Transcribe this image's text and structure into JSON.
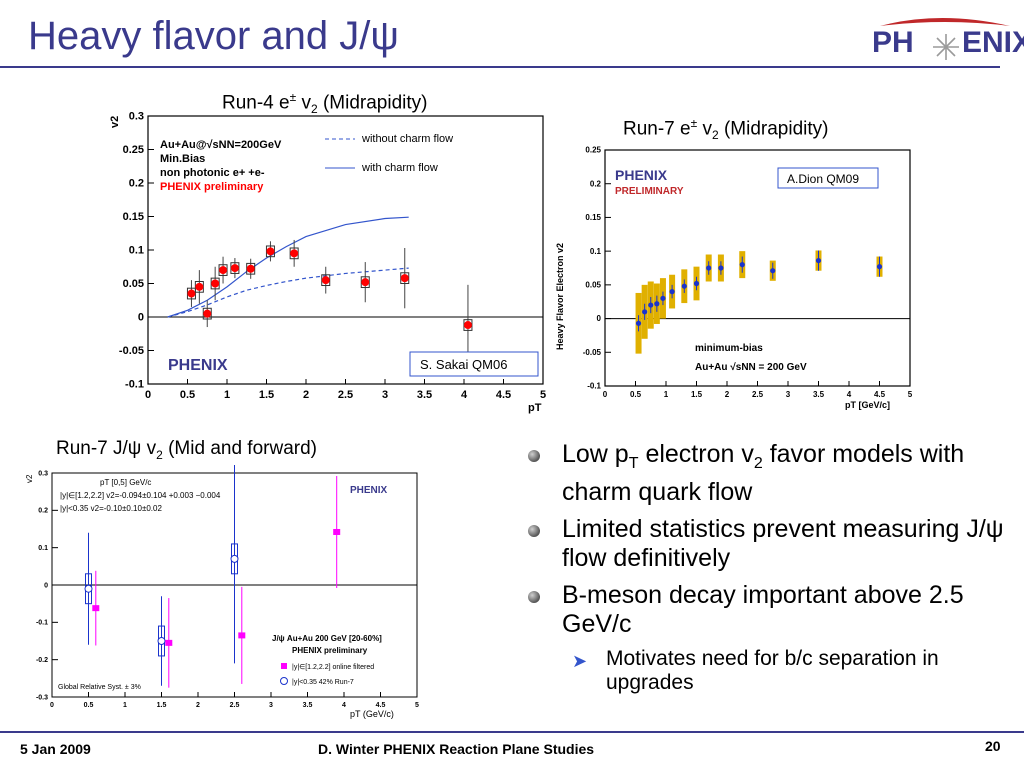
{
  "slide": {
    "title": "Heavy flavor and J/ψ",
    "logo": {
      "text_left": "PH",
      "text_right": "ENIX",
      "icon": "phoenix-bird-icon"
    },
    "accent_color": "#3a3a8c"
  },
  "footer": {
    "date": "5 Jan 2009",
    "center": "D. Winter PHENIX Reaction Plane Studies",
    "page_number": "20"
  },
  "panels": {
    "top_left": {
      "title_main": "Run-4 e",
      "title_sup": "±",
      "title_v": " v",
      "title_sub": "2",
      "title_tail": " (Midrapidity)"
    },
    "top_right": {
      "title_main": "Run-7 e",
      "title_sup": "±",
      "title_v": " v",
      "title_sub": "2",
      "title_tail": " (Midrapidity)"
    },
    "bottom_left": {
      "title_main": "Run-7 J/ψ v",
      "title_sub": "2",
      "title_tail": " (Mid and forward)"
    }
  },
  "chart_data": [
    {
      "type": "scatter",
      "xlabel": "pT",
      "ylabel": "v2",
      "xlim": [
        0,
        5
      ],
      "ylim": [
        -0.1,
        0.3
      ],
      "x_ticks": [
        "0",
        "0.5",
        "1",
        "1.5",
        "2",
        "2.5",
        "3",
        "3.5",
        "4",
        "4.5",
        "5"
      ],
      "y_ticks": [
        "-0.1",
        "-0.05",
        "0",
        "0.05",
        "0.1",
        "0.15",
        "0.2",
        "0.25",
        "0.3"
      ],
      "text_lines": [
        "Au+Au@√sNN=200GeV",
        "Min.Bias",
        "non photonic e+ +e-"
      ],
      "preliminary_label": "PHENIX preliminary",
      "legend": [
        "without charm flow",
        "with charm flow"
      ],
      "logo_label": "PHENIX",
      "annotation": "S. Sakai QM06",
      "series": [
        {
          "name": "PHENIX preliminary",
          "color": "#ff0000",
          "points": [
            [
              0.55,
              0.035
            ],
            [
              0.65,
              0.045
            ],
            [
              0.75,
              0.005
            ],
            [
              0.85,
              0.05
            ],
            [
              0.95,
              0.07
            ],
            [
              1.1,
              0.073
            ],
            [
              1.3,
              0.072
            ],
            [
              1.55,
              0.098
            ],
            [
              1.85,
              0.095
            ],
            [
              2.25,
              0.055
            ],
            [
              2.75,
              0.052
            ],
            [
              3.25,
              0.058
            ],
            [
              4.05,
              -0.012
            ]
          ],
          "err": [
            0.02,
            0.025,
            0.02,
            0.025,
            0.02,
            0.015,
            0.015,
            0.015,
            0.02,
            0.02,
            0.03,
            0.045,
            0.06
          ]
        },
        {
          "name": "without charm flow",
          "style": "dashed",
          "color": "#3355cc",
          "points": [
            [
              0.25,
              0
            ],
            [
              0.5,
              0.008
            ],
            [
              0.75,
              0.018
            ],
            [
              1.0,
              0.03
            ],
            [
              1.25,
              0.04
            ],
            [
              1.5,
              0.047
            ],
            [
              1.75,
              0.053
            ],
            [
              2.0,
              0.058
            ],
            [
              2.5,
              0.065
            ],
            [
              3.0,
              0.07
            ],
            [
              3.3,
              0.073
            ]
          ]
        },
        {
          "name": "with charm flow",
          "style": "solid",
          "color": "#3355cc",
          "points": [
            [
              0.25,
              0
            ],
            [
              0.5,
              0.01
            ],
            [
              0.75,
              0.025
            ],
            [
              1.0,
              0.045
            ],
            [
              1.25,
              0.068
            ],
            [
              1.5,
              0.088
            ],
            [
              1.75,
              0.105
            ],
            [
              2.0,
              0.12
            ],
            [
              2.5,
              0.138
            ],
            [
              3.0,
              0.147
            ],
            [
              3.3,
              0.149
            ]
          ]
        }
      ]
    },
    {
      "type": "scatter",
      "xlabel": "pT [GeV/c]",
      "ylabel": "Heavy Flavor Electron v2",
      "xlim": [
        0,
        5
      ],
      "ylim": [
        -0.1,
        0.25
      ],
      "x_ticks": [
        "0",
        "0.5",
        "1",
        "1.5",
        "2",
        "2.5",
        "3",
        "3.5",
        "4",
        "4.5",
        "5"
      ],
      "y_ticks": [
        "-0.1",
        "-0.05",
        "0",
        "0.05",
        "0.1",
        "0.15",
        "0.2",
        "0.25"
      ],
      "logo_label": "PHENIX",
      "preliminary_label": "PRELIMINARY",
      "annotation": "A.Dion QM09",
      "text_lines": [
        "minimum-bias",
        "Au+Au √sNN = 200 GeV"
      ],
      "series": [
        {
          "name": "minimum-bias",
          "color": "#1a33cc",
          "sys_color": "#e0b000",
          "points": [
            [
              0.55,
              -0.007
            ],
            [
              0.65,
              0.01
            ],
            [
              0.75,
              0.02
            ],
            [
              0.85,
              0.022
            ],
            [
              0.95,
              0.03
            ],
            [
              1.1,
              0.04
            ],
            [
              1.3,
              0.048
            ],
            [
              1.5,
              0.052
            ],
            [
              1.7,
              0.075
            ],
            [
              1.9,
              0.075
            ],
            [
              2.25,
              0.08
            ],
            [
              2.75,
              0.071
            ],
            [
              3.5,
              0.086
            ],
            [
              4.5,
              0.077
            ]
          ],
          "err": [
            0.012,
            0.012,
            0.012,
            0.012,
            0.01,
            0.01,
            0.01,
            0.01,
            0.01,
            0.01,
            0.012,
            0.012,
            0.015,
            0.015
          ],
          "sys": [
            0.045,
            0.04,
            0.035,
            0.03,
            0.03,
            0.025,
            0.025,
            0.025,
            0.02,
            0.02,
            0.02,
            0.015,
            0.015,
            0.015
          ]
        }
      ]
    },
    {
      "type": "scatter",
      "xlabel": "pT (GeV/c)",
      "ylabel": "v2",
      "xlim": [
        0,
        5
      ],
      "ylim": [
        -0.3,
        0.3
      ],
      "x_ticks": [
        "0",
        "0.5",
        "1",
        "1.5",
        "2",
        "2.5",
        "3",
        "3.5",
        "4",
        "4.5",
        "5"
      ],
      "y_ticks": [
        "-0.3",
        "-0.2",
        "-0.1",
        "0",
        "0.1",
        "0.2",
        "0.3"
      ],
      "fit_lines": [
        "pT [0,5] GeV/c",
        "|y|∈[1.2,2.2] v2=-0.094±0.104 +0.003 −0.004",
        "|y|<0.35 v2=-0.10±0.10±0.02"
      ],
      "logo_label": "PHENIX",
      "legend_title": "J/ψ Au+Au 200 GeV [20-60%]",
      "legend_sub": "PHENIX preliminary",
      "legend": [
        "|y|∈[1.2,2.2] online filtered",
        "|y|<0.35 42% Run-7"
      ],
      "syst_note": "Global Relative Syst. ± 3%",
      "series": [
        {
          "name": "|y|∈[1.2,2.2] online filtered",
          "color": "#ff00ff",
          "points": [
            [
              0.6,
              -0.062
            ],
            [
              1.6,
              -0.155
            ],
            [
              2.6,
              -0.135
            ],
            [
              3.9,
              0.142
            ]
          ],
          "err": [
            0.1,
            0.12,
            0.13,
            0.15
          ]
        },
        {
          "name": "|y|<0.35 42% Run-7",
          "color": "#1a33cc",
          "points": [
            [
              0.5,
              -0.01
            ],
            [
              1.5,
              -0.15
            ],
            [
              2.5,
              0.07
            ]
          ],
          "err": [
            0.15,
            0.12,
            0.28
          ]
        }
      ]
    }
  ],
  "bullets": [
    {
      "pre": "Low p",
      "sub": "T",
      "mid": " electron v",
      "sub2": "2",
      "post": " favor models with charm quark flow"
    },
    {
      "text": "Limited statistics prevent measuring J/ψ flow definitively"
    },
    {
      "text": "B-meson decay important above 2.5 GeV/c"
    }
  ],
  "sub_bullet": "Motivates need for b/c separation in upgrades"
}
